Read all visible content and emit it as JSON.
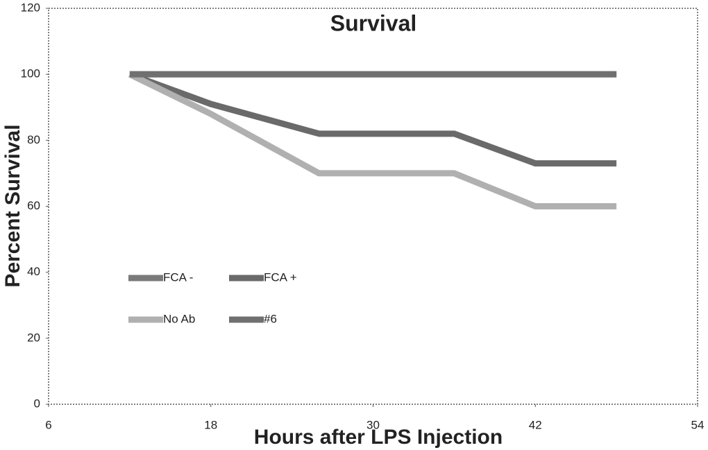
{
  "chart_data": {
    "type": "line",
    "title": "Survival",
    "x_label": "Hours after LPS Injection",
    "y_label": "Percent Survival",
    "x": [
      12,
      18,
      26,
      36,
      42,
      48
    ],
    "series": [
      {
        "name": "FCA -",
        "color": "#7a7a7a",
        "values": [
          100,
          100,
          100,
          100,
          100,
          100
        ]
      },
      {
        "name": "FCA +",
        "color": "#6a6a6a",
        "values": [
          100,
          91,
          82,
          82,
          73,
          73
        ]
      },
      {
        "name": "No Ab",
        "color": "#b0b0b0",
        "values": [
          100,
          88,
          70,
          70,
          60,
          60
        ]
      },
      {
        "name": "#6",
        "color": "#707070",
        "values": [
          100,
          100,
          100,
          100,
          100,
          100
        ]
      }
    ],
    "xlim": [
      6,
      54
    ],
    "xticks": [
      6,
      18,
      30,
      42,
      54
    ],
    "ylim": [
      0,
      120
    ],
    "yticks": [
      0,
      20,
      40,
      60,
      80,
      100,
      120
    ],
    "legend": "left"
  }
}
